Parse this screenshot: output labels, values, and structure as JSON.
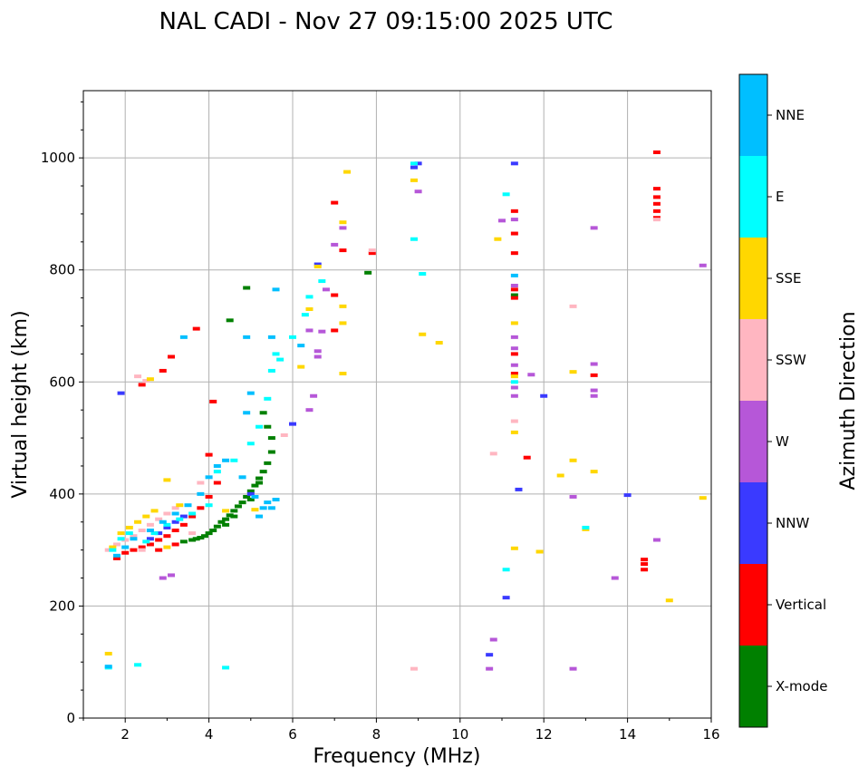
{
  "chart_data": {
    "type": "scatter",
    "title": "NAL CADI - Nov 27 09:15:00 2025 UTC",
    "xlabel": "Frequency (MHz)",
    "ylabel": "Virtual height (km)",
    "xlim": [
      1,
      16
    ],
    "ylim": [
      0,
      1120
    ],
    "xticks": [
      2,
      4,
      6,
      8,
      10,
      12,
      14,
      16
    ],
    "yticks": [
      0,
      200,
      400,
      600,
      800,
      1000
    ],
    "grid": true,
    "colorbar": {
      "label": "Azimuth Direction",
      "categories": [
        {
          "name": "X-mode",
          "color": "#008000"
        },
        {
          "name": "Vertical",
          "color": "#ff0000"
        },
        {
          "name": "NNW",
          "color": "#3a3aff"
        },
        {
          "name": "W",
          "color": "#b657d8"
        },
        {
          "name": "SSW",
          "color": "#ffb6c1"
        },
        {
          "name": "SSE",
          "color": "#ffd700"
        },
        {
          "name": "E",
          "color": "#00ffff"
        },
        {
          "name": "NNE",
          "color": "#00bfff"
        }
      ]
    },
    "series": [
      {
        "name": "X-mode",
        "points": [
          [
            3.7,
            320
          ],
          [
            3.9,
            325
          ],
          [
            4.0,
            330
          ],
          [
            4.1,
            335
          ],
          [
            4.2,
            342
          ],
          [
            4.3,
            350
          ],
          [
            4.4,
            355
          ],
          [
            4.5,
            362
          ],
          [
            4.6,
            370
          ],
          [
            4.7,
            378
          ],
          [
            4.8,
            385
          ],
          [
            4.9,
            395
          ],
          [
            5.0,
            405
          ],
          [
            5.1,
            415
          ],
          [
            5.2,
            428
          ],
          [
            5.3,
            440
          ],
          [
            5.4,
            455
          ],
          [
            5.5,
            475
          ],
          [
            5.5,
            500
          ],
          [
            5.4,
            520
          ],
          [
            5.3,
            545
          ],
          [
            4.5,
            710
          ],
          [
            4.9,
            768
          ],
          [
            7.8,
            795
          ],
          [
            11.3,
            755
          ],
          [
            3.4,
            315
          ],
          [
            3.6,
            318
          ],
          [
            3.8,
            322
          ],
          [
            4.4,
            345
          ],
          [
            4.6,
            360
          ],
          [
            5.0,
            390
          ],
          [
            5.2,
            420
          ]
        ]
      },
      {
        "name": "Vertical",
        "points": [
          [
            1.8,
            285
          ],
          [
            2.0,
            295
          ],
          [
            2.2,
            300
          ],
          [
            2.4,
            305
          ],
          [
            2.6,
            310
          ],
          [
            2.8,
            318
          ],
          [
            3.0,
            325
          ],
          [
            3.2,
            335
          ],
          [
            3.4,
            345
          ],
          [
            3.6,
            360
          ],
          [
            3.8,
            375
          ],
          [
            4.0,
            395
          ],
          [
            4.2,
            420
          ],
          [
            4.0,
            470
          ],
          [
            4.1,
            565
          ],
          [
            2.4,
            595
          ],
          [
            2.9,
            620
          ],
          [
            3.1,
            645
          ],
          [
            3.7,
            695
          ],
          [
            7.0,
            692
          ],
          [
            7.0,
            755
          ],
          [
            7.2,
            835
          ],
          [
            7.9,
            830
          ],
          [
            7.0,
            920
          ],
          [
            11.3,
            750
          ],
          [
            11.3,
            765
          ],
          [
            11.3,
            830
          ],
          [
            11.3,
            865
          ],
          [
            11.3,
            905
          ],
          [
            11.3,
            615
          ],
          [
            11.3,
            650
          ],
          [
            11.6,
            465
          ],
          [
            13.2,
            612
          ],
          [
            14.4,
            265
          ],
          [
            14.4,
            275
          ],
          [
            14.4,
            283
          ],
          [
            14.7,
            893
          ],
          [
            14.7,
            905
          ],
          [
            14.7,
            918
          ],
          [
            14.7,
            930
          ],
          [
            14.7,
            945
          ],
          [
            14.7,
            1010
          ],
          [
            2.8,
            300
          ],
          [
            3.2,
            310
          ]
        ]
      },
      {
        "name": "NNW",
        "points": [
          [
            1.9,
            580
          ],
          [
            2.6,
            320
          ],
          [
            2.8,
            330
          ],
          [
            3.0,
            340
          ],
          [
            3.2,
            350
          ],
          [
            3.4,
            360
          ],
          [
            6.0,
            525
          ],
          [
            8.9,
            983
          ],
          [
            9.0,
            990
          ],
          [
            10.7,
            113
          ],
          [
            11.1,
            215
          ],
          [
            11.3,
            990
          ],
          [
            11.4,
            408
          ],
          [
            12.0,
            575
          ],
          [
            14.0,
            398
          ],
          [
            5.0,
            400
          ],
          [
            6.6,
            810
          ]
        ]
      },
      {
        "name": "W",
        "points": [
          [
            2.9,
            250
          ],
          [
            3.1,
            255
          ],
          [
            6.4,
            550
          ],
          [
            6.5,
            575
          ],
          [
            6.6,
            655
          ],
          [
            6.7,
            690
          ],
          [
            6.8,
            765
          ],
          [
            7.0,
            845
          ],
          [
            7.2,
            875
          ],
          [
            9.0,
            940
          ],
          [
            10.7,
            88
          ],
          [
            10.8,
            140
          ],
          [
            11.0,
            888
          ],
          [
            11.3,
            890
          ],
          [
            11.3,
            575
          ],
          [
            11.3,
            590
          ],
          [
            11.3,
            630
          ],
          [
            11.3,
            660
          ],
          [
            11.3,
            680
          ],
          [
            11.3,
            772
          ],
          [
            11.7,
            613
          ],
          [
            12.7,
            88
          ],
          [
            12.7,
            395
          ],
          [
            13.2,
            575
          ],
          [
            13.2,
            585
          ],
          [
            13.2,
            632
          ],
          [
            13.2,
            875
          ],
          [
            13.7,
            250
          ],
          [
            14.7,
            318
          ],
          [
            15.8,
            808
          ],
          [
            6.4,
            692
          ],
          [
            6.6,
            645
          ]
        ]
      },
      {
        "name": "SSW",
        "points": [
          [
            1.6,
            300
          ],
          [
            1.8,
            310
          ],
          [
            2.0,
            318
          ],
          [
            2.2,
            325
          ],
          [
            2.4,
            335
          ],
          [
            2.6,
            345
          ],
          [
            2.8,
            355
          ],
          [
            3.0,
            365
          ],
          [
            3.2,
            375
          ],
          [
            2.3,
            610
          ],
          [
            2.5,
            602
          ],
          [
            3.6,
            330
          ],
          [
            3.8,
            420
          ],
          [
            5.8,
            505
          ],
          [
            7.9,
            835
          ],
          [
            8.9,
            88
          ],
          [
            10.8,
            472
          ],
          [
            11.3,
            530
          ],
          [
            12.7,
            735
          ],
          [
            14.7,
            890
          ],
          [
            2.4,
            300
          ]
        ]
      },
      {
        "name": "SSE",
        "points": [
          [
            1.6,
            115
          ],
          [
            1.7,
            305
          ],
          [
            1.9,
            330
          ],
          [
            2.1,
            340
          ],
          [
            2.3,
            350
          ],
          [
            2.5,
            360
          ],
          [
            2.7,
            370
          ],
          [
            3.0,
            425
          ],
          [
            3.3,
            380
          ],
          [
            4.4,
            370
          ],
          [
            5.1,
            372
          ],
          [
            6.2,
            627
          ],
          [
            6.4,
            730
          ],
          [
            6.6,
            806
          ],
          [
            7.2,
            615
          ],
          [
            7.2,
            705
          ],
          [
            7.2,
            735
          ],
          [
            7.2,
            885
          ],
          [
            7.3,
            975
          ],
          [
            8.9,
            960
          ],
          [
            9.1,
            685
          ],
          [
            9.5,
            670
          ],
          [
            10.9,
            855
          ],
          [
            11.3,
            303
          ],
          [
            11.3,
            510
          ],
          [
            11.3,
            610
          ],
          [
            11.3,
            705
          ],
          [
            11.9,
            297
          ],
          [
            12.4,
            433
          ],
          [
            12.7,
            460
          ],
          [
            12.7,
            618
          ],
          [
            13.0,
            337
          ],
          [
            13.2,
            440
          ],
          [
            15.0,
            210
          ],
          [
            15.8,
            393
          ],
          [
            2.6,
            605
          ],
          [
            3.0,
            305
          ]
        ]
      },
      {
        "name": "E",
        "points": [
          [
            1.6,
            90
          ],
          [
            2.3,
            95
          ],
          [
            4.4,
            90
          ],
          [
            1.7,
            300
          ],
          [
            1.9,
            320
          ],
          [
            2.1,
            330
          ],
          [
            2.5,
            315
          ],
          [
            2.7,
            330
          ],
          [
            3.0,
            345
          ],
          [
            3.3,
            355
          ],
          [
            3.6,
            365
          ],
          [
            4.0,
            380
          ],
          [
            4.2,
            440
          ],
          [
            4.6,
            460
          ],
          [
            5.0,
            490
          ],
          [
            5.2,
            520
          ],
          [
            5.4,
            570
          ],
          [
            5.5,
            620
          ],
          [
            5.7,
            640
          ],
          [
            6.0,
            680
          ],
          [
            6.3,
            720
          ],
          [
            6.7,
            780
          ],
          [
            8.9,
            855
          ],
          [
            8.9,
            990
          ],
          [
            9.1,
            793
          ],
          [
            11.1,
            935
          ],
          [
            11.1,
            265
          ],
          [
            11.3,
            600
          ],
          [
            13.0,
            340
          ],
          [
            5.6,
            650
          ],
          [
            6.4,
            752
          ]
        ]
      },
      {
        "name": "NNE",
        "points": [
          [
            1.6,
            92
          ],
          [
            1.8,
            290
          ],
          [
            2.0,
            305
          ],
          [
            2.2,
            320
          ],
          [
            2.6,
            335
          ],
          [
            2.9,
            350
          ],
          [
            3.2,
            365
          ],
          [
            3.5,
            380
          ],
          [
            3.8,
            400
          ],
          [
            4.0,
            430
          ],
          [
            4.2,
            450
          ],
          [
            4.4,
            460
          ],
          [
            4.9,
            545
          ],
          [
            5.0,
            580
          ],
          [
            5.2,
            360
          ],
          [
            5.3,
            375
          ],
          [
            5.4,
            385
          ],
          [
            5.5,
            375
          ],
          [
            5.6,
            390
          ],
          [
            5.6,
            765
          ],
          [
            4.9,
            680
          ],
          [
            5.5,
            680
          ],
          [
            6.2,
            665
          ],
          [
            11.3,
            790
          ],
          [
            3.4,
            680
          ],
          [
            4.8,
            430
          ],
          [
            5.1,
            395
          ]
        ]
      }
    ]
  }
}
